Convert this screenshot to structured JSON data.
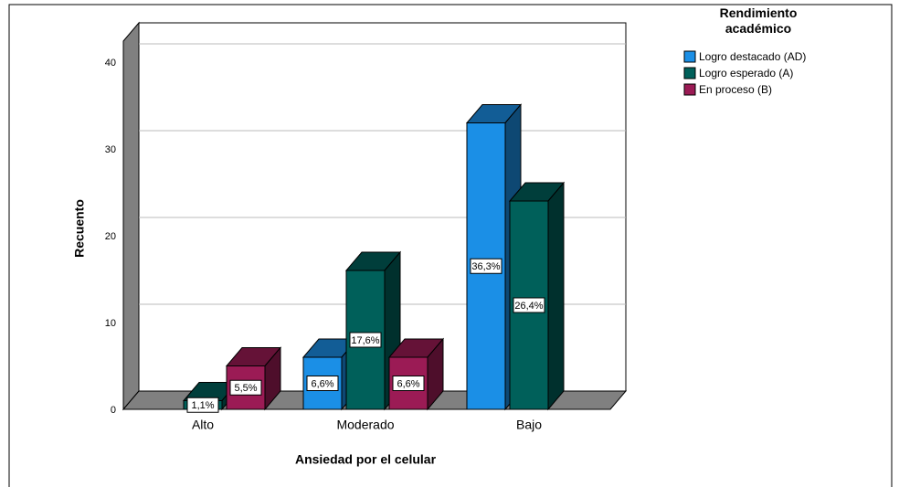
{
  "chart_data": {
    "type": "bar3d",
    "legend_title": "Rendimiento académico",
    "x_label": "Ansiedad por el celular",
    "y_label": "Recuento",
    "categories": [
      "Alto",
      "Moderado",
      "Bajo"
    ],
    "series": [
      {
        "name": "Logro destacado (AD)",
        "color": "#1b8fe6",
        "values": [
          0,
          6,
          33
        ],
        "value_labels": [
          null,
          "6,6%",
          "36,3%"
        ]
      },
      {
        "name": "Logro esperado (A)",
        "color": "#00605a",
        "values": [
          1,
          16,
          24
        ],
        "value_labels": [
          "1,1%",
          "17,6%",
          "26,4%"
        ]
      },
      {
        "name": "En proceso (B)",
        "color": "#9b1b55",
        "values": [
          5,
          6,
          0
        ],
        "value_labels": [
          "5,5%",
          "6,6%",
          null
        ]
      }
    ],
    "ylim": [
      0,
      40
    ],
    "yticks": [
      0,
      10,
      20,
      30,
      40
    ],
    "grid": true,
    "legend": "top-right"
  }
}
